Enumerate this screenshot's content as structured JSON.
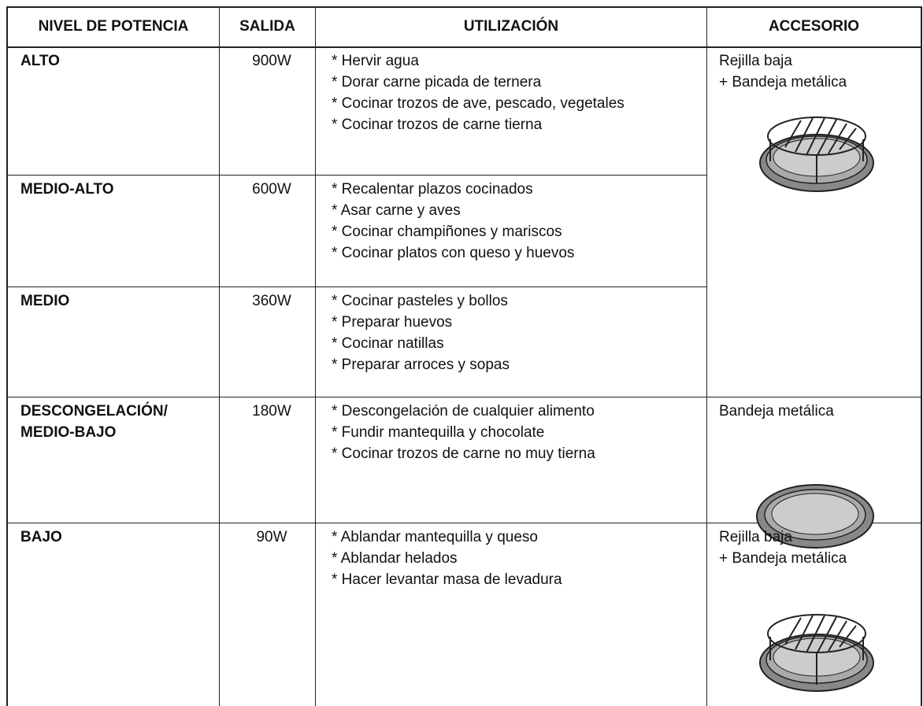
{
  "table": {
    "header": [
      "NIVEL DE POTENCIA",
      "SALIDA",
      "UTILIZACIÓN",
      "ACCESORIO"
    ],
    "rows": [
      {
        "level": [
          "ALTO"
        ],
        "output": "900W",
        "uses": [
          "* Hervir agua",
          "* Dorar carne picada de ternera",
          "* Cocinar trozos de ave, pescado, vegetales",
          "* Cocinar trozos de carne tierna"
        ]
      },
      {
        "level": [
          "MEDIO-ALTO"
        ],
        "output": "600W",
        "uses": [
          "* Recalentar plazos cocinados",
          "* Asar carne y aves",
          "* Cocinar champiñones y mariscos",
          "* Cocinar platos con queso y huevos"
        ]
      },
      {
        "level": [
          "MEDIO"
        ],
        "output": "360W",
        "uses": [
          "* Cocinar pasteles y bollos",
          "* Preparar huevos",
          "* Cocinar natillas",
          "* Preparar arroces y sopas"
        ]
      },
      {
        "level": [
          "DESCONGELACIÓN/",
          "MEDIO-BAJO"
        ],
        "output": "180W",
        "uses": [
          "* Descongelación de cualquier alimento",
          "* Fundir mantequilla y chocolate",
          "* Cocinar trozos de carne no muy tierna"
        ]
      },
      {
        "level": [
          "BAJO"
        ],
        "output": "90W",
        "uses": [
          "* Ablandar mantequilla y queso",
          "* Ablandar helados",
          "* Hacer levantar masa de levadura"
        ]
      }
    ],
    "accessories": [
      {
        "lines": [
          "Rejilla baja",
          "+ Bandeja metálica"
        ]
      },
      {
        "lines": [
          "Bandeja metálica"
        ]
      },
      {
        "lines": [
          "Rejilla baja",
          "+ Bandeja metálica"
        ]
      }
    ]
  }
}
